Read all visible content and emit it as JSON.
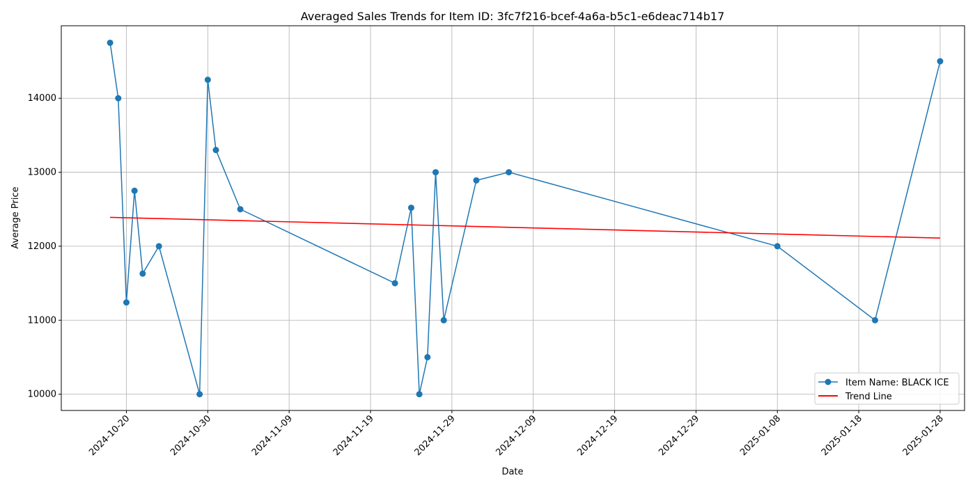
{
  "chart_data": {
    "type": "line",
    "title": "Averaged Sales Trends for Item ID: 3fc7f216-bcef-4a6a-b5c1-e6deac714b17",
    "xlabel": "Date",
    "ylabel": "Average Price",
    "x_ticks": [
      "2024-10-20",
      "2024-10-30",
      "2024-11-09",
      "2024-11-19",
      "2024-11-29",
      "2024-12-09",
      "2024-12-19",
      "2024-12-29",
      "2025-01-08",
      "2025-01-18",
      "2025-01-28"
    ],
    "y_ticks": [
      10000,
      11000,
      12000,
      13000,
      14000
    ],
    "xlim": [
      "2024-10-12",
      "2025-01-31"
    ],
    "ylim": [
      9780,
      14980
    ],
    "grid": true,
    "legend_position": "lower-right",
    "series": [
      {
        "name": "Item Name: BLACK ICE",
        "color": "#1f77b4",
        "marker": "circle",
        "x": [
          "2024-10-18",
          "2024-10-19",
          "2024-10-20",
          "2024-10-21",
          "2024-10-22",
          "2024-10-24",
          "2024-10-29",
          "2024-10-30",
          "2024-10-31",
          "2024-11-03",
          "2024-11-22",
          "2024-11-24",
          "2024-11-25",
          "2024-11-26",
          "2024-11-27",
          "2024-11-28",
          "2024-12-02",
          "2024-12-06",
          "2025-01-08",
          "2025-01-20",
          "2025-01-28"
        ],
        "y": [
          14750,
          14000,
          11240,
          12750,
          11630,
          12000,
          10000,
          14250,
          13300,
          12500,
          11500,
          12520,
          10000,
          10500,
          13000,
          11000,
          12890,
          13000,
          12000,
          11000,
          14500
        ]
      },
      {
        "name": "Trend Line",
        "color": "#ff0000",
        "marker": "none",
        "x": [
          "2024-10-18",
          "2025-01-28"
        ],
        "y": [
          12390,
          12110
        ]
      }
    ]
  }
}
